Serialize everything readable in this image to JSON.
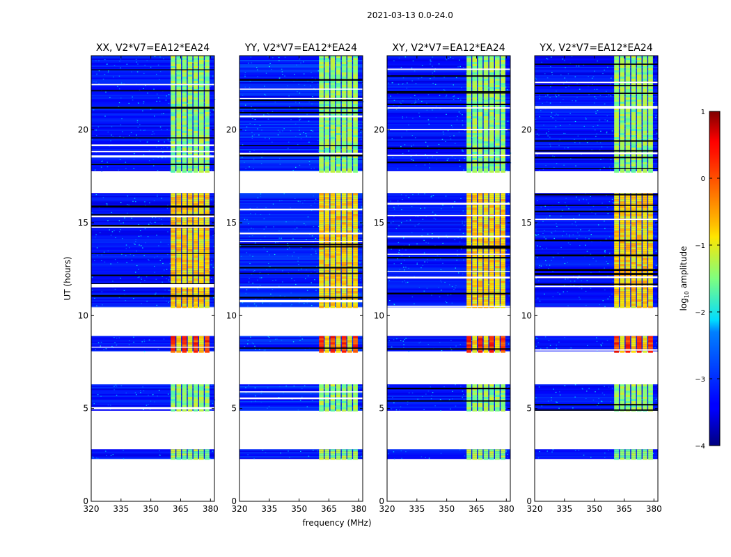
{
  "figure": {
    "suptitle": "2021-03-13 0.0-24.0"
  },
  "chart_data": {
    "type": "heatmap",
    "xlabel": "frequency (MHz)",
    "ylabel": "UT (hours)",
    "xlim": [
      320,
      382
    ],
    "ylim": [
      0,
      24
    ],
    "x_ticks": [
      320,
      335,
      350,
      365,
      380
    ],
    "y_ticks": [
      0,
      5,
      10,
      15,
      20
    ],
    "panels": [
      {
        "title": "XX, V2*V7=EA12*EA24",
        "ylabel_shown": true
      },
      {
        "title": "YY, V2*V7=EA12*EA24",
        "ylabel_shown": false
      },
      {
        "title": "XY, V2*V7=EA12*EA24",
        "ylabel_shown": false
      },
      {
        "title": "YX, V2*V7=EA12*EA24",
        "ylabel_shown": false
      }
    ],
    "data_blocks_ut_hours": [
      [
        2.3,
        2.8
      ],
      [
        4.9,
        6.3
      ],
      [
        8.1,
        8.9
      ],
      [
        10.5,
        16.6
      ],
      [
        17.8,
        24.0
      ]
    ],
    "rfi_band_mhz": [
      360,
      380
    ],
    "colorbar": {
      "label": "log10 amplitude",
      "label_prefix": "log",
      "label_subscript": "10",
      "label_suffix": " amplitude",
      "range": [
        -4,
        1
      ],
      "ticks": [
        "−4",
        "−3",
        "−2",
        "−1",
        "0",
        "1"
      ],
      "colormap": "jet"
    }
  }
}
